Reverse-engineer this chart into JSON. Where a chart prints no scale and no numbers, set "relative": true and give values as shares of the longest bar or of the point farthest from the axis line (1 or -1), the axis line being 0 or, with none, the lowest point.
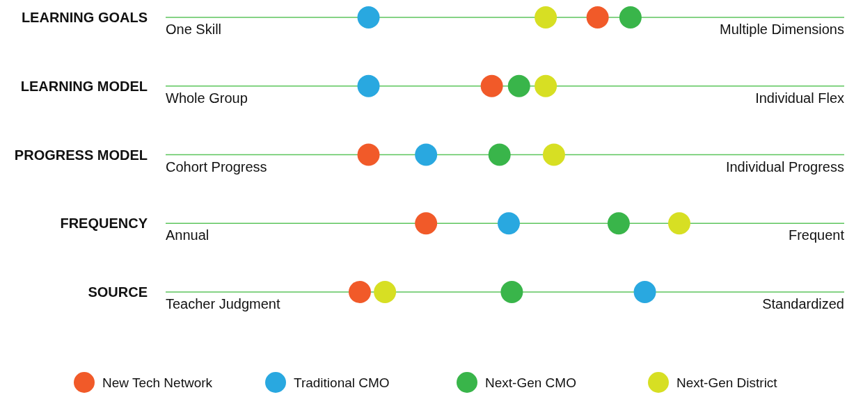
{
  "chart_data": {
    "type": "scatter",
    "orientation": "horizontal",
    "relative": true,
    "marker": "circle",
    "grid": "y",
    "legend": "bottom",
    "categories": [
      "LEARNING GOALS",
      "LEARNING MODEL",
      "PROGRESS MODEL",
      "FREQUENCY",
      "SOURCE"
    ],
    "series": [
      {
        "name": "New Tech Network",
        "color": "#f15a29",
        "values": [
          0.841,
          0.635,
          0.395,
          0.507,
          0.378
        ]
      },
      {
        "name": "Traditional CMO",
        "color": "#29a8e0",
        "values": [
          0.395,
          0.395,
          0.507,
          0.668,
          0.933
        ]
      },
      {
        "name": "Next-Gen CMO",
        "color": "#39b54a",
        "values": [
          0.905,
          0.688,
          0.65,
          0.882,
          0.674
        ]
      },
      {
        "name": "Next-Gen District",
        "color": "#d7df23",
        "values": [
          0.74,
          0.74,
          0.756,
          1,
          0.427
        ]
      }
    ],
    "annotations": [
      "One Skill",
      "Multiple Dimensions",
      "Whole Group",
      "Individual Flex",
      "Cohort Progress",
      "Individual Progress",
      "Annual",
      "Frequent",
      "Teacher Judgment",
      "Standardized"
    ]
  }
}
